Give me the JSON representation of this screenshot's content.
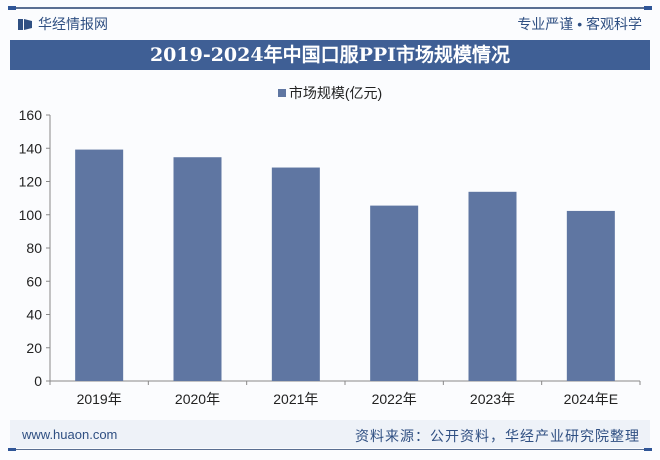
{
  "header": {
    "brand": "华经情报网",
    "slogan": "专业严谨 • 客观科学"
  },
  "footer": {
    "url": "www.huaon.com",
    "source": "资料来源：公开资料，华经产业研究院整理"
  },
  "watermark": "华经产业研究院",
  "colors": {
    "bar": "#5f76a2",
    "title_bg": "#3f5f95"
  },
  "chart_data": {
    "type": "bar",
    "title": "2019-2024年中国口服PPI市场规模情况",
    "categories": [
      "2019年",
      "2020年",
      "2021年",
      "2022年",
      "2023年",
      "2024年E"
    ],
    "series": [
      {
        "name": "市场规模(亿元)",
        "values": [
          139.2,
          134.6,
          128.4,
          105.5,
          113.8,
          102.3
        ]
      }
    ],
    "ylim": [
      0,
      160
    ],
    "yticks": [
      0,
      20,
      40,
      60,
      80,
      100,
      120,
      140,
      160
    ],
    "xlabel": "",
    "ylabel": "",
    "legend": "top-center",
    "grid": false
  }
}
